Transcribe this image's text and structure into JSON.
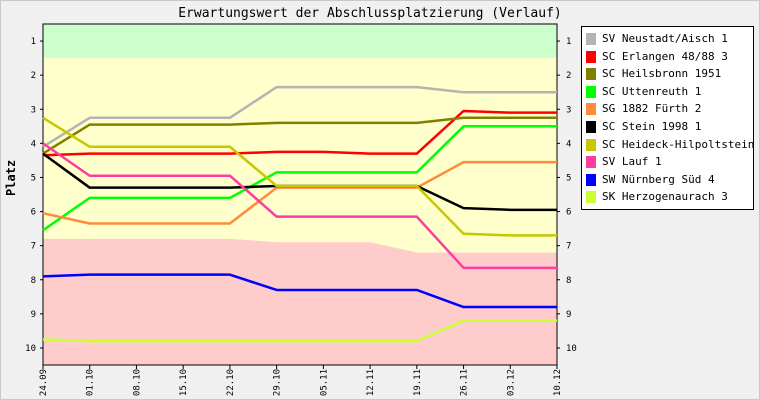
{
  "chart_data": {
    "type": "line",
    "title": "Erwartungswert der Abschlussplatzierung (Verlauf)",
    "ylabel": "Platz",
    "xlabel": "",
    "ylim": [
      0.5,
      10.5
    ],
    "y_inverted": true,
    "y_ticks": [
      "1",
      "2",
      "3",
      "4",
      "5",
      "6",
      "7",
      "8",
      "9",
      "10"
    ],
    "categories": [
      "24.09",
      "01.10",
      "08.10",
      "15.10",
      "22.10",
      "29.10",
      "05.11",
      "12.11",
      "19.11",
      "26.11",
      "03.12",
      "10.12"
    ],
    "bands": [
      {
        "name": "promotion",
        "color": "#ccffcc",
        "upper": [
          1.5,
          1.5,
          1.5,
          1.5,
          1.5,
          1.5,
          1.5,
          1.5,
          1.5,
          1.5,
          1.5,
          1.5
        ]
      },
      {
        "name": "middle",
        "color": "#ffffcc",
        "upper": [
          6.8,
          6.8,
          6.8,
          6.8,
          6.8,
          6.9,
          6.9,
          6.9,
          7.2,
          7.2,
          7.2,
          7.2
        ]
      },
      {
        "name": "relegation",
        "color": "#ffcccc",
        "upper": [
          10.5,
          10.5,
          10.5,
          10.5,
          10.5,
          10.5,
          10.5,
          10.5,
          10.5,
          10.5,
          10.5,
          10.5
        ]
      }
    ],
    "series": [
      {
        "name": "SV Neustadt/Aisch 1",
        "color": "#b4b4b4",
        "values": [
          4.1,
          3.25,
          3.25,
          3.25,
          3.25,
          2.35,
          2.35,
          2.35,
          2.35,
          2.5,
          2.5,
          2.5
        ]
      },
      {
        "name": "SC Erlangen 48/88 3",
        "color": "#ff0000",
        "values": [
          4.35,
          4.3,
          4.3,
          4.3,
          4.3,
          4.25,
          4.25,
          4.3,
          4.3,
          3.05,
          3.1,
          3.1
        ]
      },
      {
        "name": "SC Heilsbronn 1951",
        "color": "#808000",
        "values": [
          4.3,
          3.45,
          3.45,
          3.45,
          3.45,
          3.4,
          3.4,
          3.4,
          3.4,
          3.25,
          3.25,
          3.25
        ]
      },
      {
        "name": "SC Uttenreuth 1",
        "color": "#00ff00",
        "values": [
          6.55,
          5.6,
          5.6,
          5.6,
          5.6,
          4.85,
          4.85,
          4.85,
          4.85,
          3.5,
          3.5,
          3.5
        ]
      },
      {
        "name": "SG 1882 Fürth 2",
        "color": "#ff8c3c",
        "values": [
          6.05,
          6.35,
          6.35,
          6.35,
          6.35,
          5.3,
          5.3,
          5.3,
          5.3,
          4.55,
          4.55,
          4.55
        ]
      },
      {
        "name": "SC Stein 1998 1",
        "color": "#000000",
        "values": [
          4.3,
          5.3,
          5.3,
          5.3,
          5.3,
          5.25,
          5.25,
          5.25,
          5.25,
          5.9,
          5.95,
          5.95
        ]
      },
      {
        "name": "SC Heideck-Hilpoltstein 1",
        "color": "#c8c800",
        "values": [
          3.25,
          4.1,
          4.1,
          4.1,
          4.1,
          5.25,
          5.25,
          5.25,
          5.25,
          6.65,
          6.7,
          6.7
        ]
      },
      {
        "name": "SV Lauf 1",
        "color": "#ff3ca0",
        "values": [
          4.0,
          4.95,
          4.95,
          4.95,
          4.95,
          6.15,
          6.15,
          6.15,
          6.15,
          7.65,
          7.65,
          7.65
        ]
      },
      {
        "name": "SW Nürnberg Süd 4",
        "color": "#0000ff",
        "values": [
          7.9,
          7.85,
          7.85,
          7.85,
          7.85,
          8.3,
          8.3,
          8.3,
          8.3,
          8.8,
          8.8,
          8.8
        ]
      },
      {
        "name": "SK Herzogenaurach 3",
        "color": "#ccff33",
        "values": [
          9.75,
          9.8,
          9.8,
          9.8,
          9.8,
          9.8,
          9.8,
          9.8,
          9.8,
          9.2,
          9.2,
          9.2
        ]
      }
    ]
  }
}
